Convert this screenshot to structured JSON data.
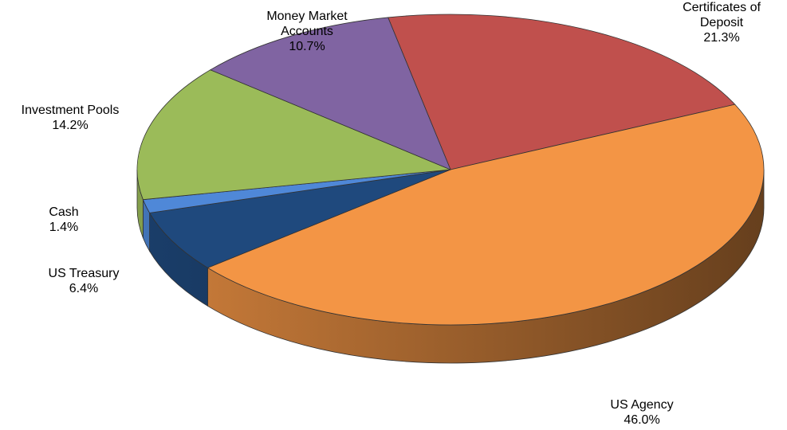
{
  "chart_data": {
    "type": "pie",
    "categories": [
      "Certificates of Deposit",
      "US Agency",
      "US Treasury",
      "Cash",
      "Investment Pools",
      "Money Market Accounts"
    ],
    "values": [
      21.3,
      46.0,
      6.4,
      1.4,
      14.2,
      10.7
    ],
    "value_labels": [
      "21.3%",
      "46.0%",
      "6.4%",
      "1.4%",
      "14.2%",
      "10.7%"
    ],
    "colors": [
      "#c0504d",
      "#f39545",
      "#1f497d",
      "#4f88d8",
      "#9bbb59",
      "#8064a2"
    ]
  }
}
